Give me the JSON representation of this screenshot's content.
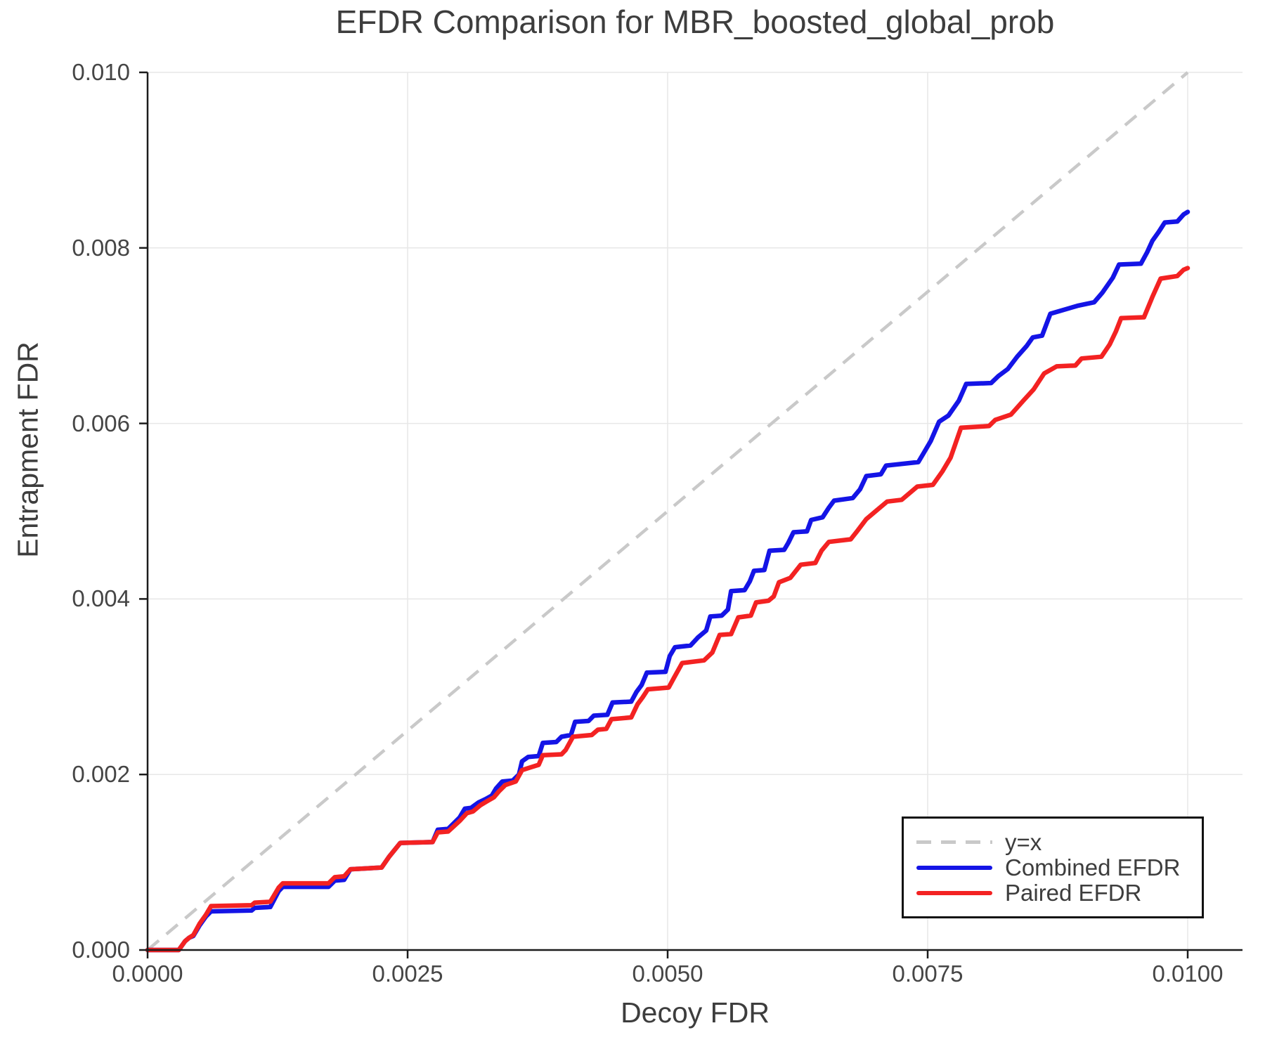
{
  "window": {
    "background": "#ffffff"
  },
  "chart_data": {
    "type": "line",
    "title": "EFDR Comparison for MBR_boosted_global_prob",
    "xlabel": "Decoy FDR",
    "ylabel": "Entrapment FDR",
    "xlim": [
      0,
      0.010527
    ],
    "ylim": [
      0,
      0.01
    ],
    "grid": true,
    "legend_position": "lower right",
    "x_ticks": {
      "values": [
        0,
        0.0025,
        0.005,
        0.0075,
        0.01
      ],
      "labels": [
        "0.0000",
        "0.0025",
        "0.0050",
        "0.0075",
        "0.0100"
      ]
    },
    "y_ticks": {
      "values": [
        0,
        0.002,
        0.004,
        0.006,
        0.008,
        0.01
      ],
      "labels": [
        "0.000",
        "0.002",
        "0.004",
        "0.006",
        "0.008",
        "0.010"
      ]
    },
    "colors": {
      "grid": "#e7e7e7",
      "spine": "#1c1c1c",
      "text": "#3d3d3d"
    },
    "series": [
      {
        "name": "y=x",
        "color": "#c9c9c9",
        "dash": [
          21,
          14
        ],
        "width": 4.5,
        "points": [
          [
            0,
            0
          ],
          [
            0.01,
            0.01
          ]
        ]
      },
      {
        "name": "Combined EFDR",
        "color": "#1414e6",
        "dash": null,
        "width": 6.5,
        "points": [
          [
            0,
            0
          ],
          [
            0.0003,
            0
          ],
          [
            0.00036,
            0.0001
          ],
          [
            0.0004,
            0.00014
          ],
          [
            0.00044,
            0.00016
          ],
          [
            0.0005,
            0.00028
          ],
          [
            0.00056,
            0.00038
          ],
          [
            0.00061,
            0.00044
          ],
          [
            0.001,
            0.00045
          ],
          [
            0.00103,
            0.00048
          ],
          [
            0.00118,
            0.00049
          ],
          [
            0.00126,
            0.00067
          ],
          [
            0.0013,
            0.00072
          ],
          [
            0.00174,
            0.00072
          ],
          [
            0.0018,
            0.00079
          ],
          [
            0.00189,
            0.0008
          ],
          [
            0.00195,
            0.00092
          ],
          [
            0.00225,
            0.00094
          ],
          [
            0.00232,
            0.00106
          ],
          [
            0.00243,
            0.00122
          ],
          [
            0.00274,
            0.00123
          ],
          [
            0.00279,
            0.00137
          ],
          [
            0.00289,
            0.00138
          ],
          [
            0.003,
            0.00151
          ],
          [
            0.00305,
            0.00161
          ],
          [
            0.00311,
            0.00162
          ],
          [
            0.00318,
            0.00168
          ],
          [
            0.00325,
            0.00172
          ],
          [
            0.00331,
            0.00176
          ],
          [
            0.00335,
            0.00184
          ],
          [
            0.00341,
            0.00192
          ],
          [
            0.00351,
            0.00193
          ],
          [
            0.00357,
            0.002
          ],
          [
            0.0036,
            0.00215
          ],
          [
            0.00366,
            0.0022
          ],
          [
            0.00376,
            0.00221
          ],
          [
            0.0038,
            0.00236
          ],
          [
            0.00393,
            0.00237
          ],
          [
            0.00398,
            0.00243
          ],
          [
            0.00407,
            0.00245
          ],
          [
            0.00411,
            0.0026
          ],
          [
            0.00424,
            0.00261
          ],
          [
            0.00429,
            0.00267
          ],
          [
            0.00442,
            0.00268
          ],
          [
            0.00447,
            0.00282
          ],
          [
            0.00465,
            0.00283
          ],
          [
            0.0047,
            0.00294
          ],
          [
            0.00475,
            0.00302
          ],
          [
            0.0048,
            0.00316
          ],
          [
            0.00498,
            0.00317
          ],
          [
            0.00502,
            0.00335
          ],
          [
            0.00507,
            0.00345
          ],
          [
            0.00522,
            0.00347
          ],
          [
            0.00529,
            0.00356
          ],
          [
            0.00537,
            0.00364
          ],
          [
            0.00541,
            0.0038
          ],
          [
            0.00552,
            0.00381
          ],
          [
            0.00558,
            0.00388
          ],
          [
            0.00561,
            0.00409
          ],
          [
            0.00574,
            0.0041
          ],
          [
            0.00579,
            0.0042
          ],
          [
            0.00583,
            0.00432
          ],
          [
            0.00593,
            0.00433
          ],
          [
            0.00598,
            0.00455
          ],
          [
            0.00612,
            0.00456
          ],
          [
            0.00616,
            0.00464
          ],
          [
            0.00621,
            0.00476
          ],
          [
            0.00634,
            0.00477
          ],
          [
            0.00638,
            0.0049
          ],
          [
            0.00649,
            0.00493
          ],
          [
            0.00655,
            0.00504
          ],
          [
            0.0066,
            0.00512
          ],
          [
            0.00678,
            0.00515
          ],
          [
            0.00685,
            0.00525
          ],
          [
            0.00691,
            0.0054
          ],
          [
            0.00705,
            0.00542
          ],
          [
            0.0071,
            0.00552
          ],
          [
            0.00741,
            0.00556
          ],
          [
            0.00746,
            0.00566
          ],
          [
            0.00753,
            0.0058
          ],
          [
            0.00761,
            0.00602
          ],
          [
            0.0077,
            0.00609
          ],
          [
            0.0078,
            0.00626
          ],
          [
            0.00787,
            0.00645
          ],
          [
            0.00811,
            0.00646
          ],
          [
            0.00818,
            0.00654
          ],
          [
            0.00827,
            0.00662
          ],
          [
            0.00836,
            0.00676
          ],
          [
            0.00845,
            0.00688
          ],
          [
            0.00851,
            0.00698
          ],
          [
            0.0086,
            0.007
          ],
          [
            0.00868,
            0.00725
          ],
          [
            0.00894,
            0.00734
          ],
          [
            0.0091,
            0.00738
          ],
          [
            0.00918,
            0.00749
          ],
          [
            0.00928,
            0.00766
          ],
          [
            0.00934,
            0.00781
          ],
          [
            0.00955,
            0.00782
          ],
          [
            0.00961,
            0.00795
          ],
          [
            0.00966,
            0.00808
          ],
          [
            0.00972,
            0.00818
          ],
          [
            0.00978,
            0.00829
          ],
          [
            0.0099,
            0.0083
          ],
          [
            0.00996,
            0.00838
          ],
          [
            0.01,
            0.00841
          ]
        ]
      },
      {
        "name": "Paired EFDR",
        "color": "#f32222",
        "dash": null,
        "width": 6.5,
        "points": [
          [
            0,
            0
          ],
          [
            0.0003,
            0
          ],
          [
            0.00036,
            0.0001
          ],
          [
            0.0004,
            0.00014
          ],
          [
            0.00044,
            0.00017
          ],
          [
            0.0005,
            0.0003
          ],
          [
            0.00056,
            0.0004
          ],
          [
            0.00061,
            0.0005
          ],
          [
            0.001,
            0.00051
          ],
          [
            0.00103,
            0.00054
          ],
          [
            0.00118,
            0.00055
          ],
          [
            0.00126,
            0.00071
          ],
          [
            0.0013,
            0.00076
          ],
          [
            0.00174,
            0.00076
          ],
          [
            0.0018,
            0.00083
          ],
          [
            0.00189,
            0.00084
          ],
          [
            0.00195,
            0.00092
          ],
          [
            0.00225,
            0.00094
          ],
          [
            0.00232,
            0.00106
          ],
          [
            0.00243,
            0.00122
          ],
          [
            0.00274,
            0.00123
          ],
          [
            0.00279,
            0.00134
          ],
          [
            0.00289,
            0.00135
          ],
          [
            0.003,
            0.00147
          ],
          [
            0.00307,
            0.00156
          ],
          [
            0.00313,
            0.00158
          ],
          [
            0.0032,
            0.00165
          ],
          [
            0.00327,
            0.0017
          ],
          [
            0.00333,
            0.00174
          ],
          [
            0.00338,
            0.00181
          ],
          [
            0.00344,
            0.00188
          ],
          [
            0.00354,
            0.00192
          ],
          [
            0.0036,
            0.00205
          ],
          [
            0.00368,
            0.00208
          ],
          [
            0.00376,
            0.00211
          ],
          [
            0.0038,
            0.00222
          ],
          [
            0.00398,
            0.00223
          ],
          [
            0.00402,
            0.00228
          ],
          [
            0.00409,
            0.00243
          ],
          [
            0.00427,
            0.00245
          ],
          [
            0.00433,
            0.00251
          ],
          [
            0.00441,
            0.00252
          ],
          [
            0.00446,
            0.00263
          ],
          [
            0.00465,
            0.00265
          ],
          [
            0.00471,
            0.0028
          ],
          [
            0.00476,
            0.00288
          ],
          [
            0.00481,
            0.00297
          ],
          [
            0.00501,
            0.00299
          ],
          [
            0.00506,
            0.0031
          ],
          [
            0.00514,
            0.00327
          ],
          [
            0.00535,
            0.0033
          ],
          [
            0.00543,
            0.00339
          ],
          [
            0.0055,
            0.00359
          ],
          [
            0.00561,
            0.0036
          ],
          [
            0.00568,
            0.00379
          ],
          [
            0.0058,
            0.00381
          ],
          [
            0.00585,
            0.00396
          ],
          [
            0.00597,
            0.00398
          ],
          [
            0.00602,
            0.00403
          ],
          [
            0.00607,
            0.00419
          ],
          [
            0.00618,
            0.00424
          ],
          [
            0.00628,
            0.00439
          ],
          [
            0.00642,
            0.00441
          ],
          [
            0.00648,
            0.00455
          ],
          [
            0.00655,
            0.00465
          ],
          [
            0.00676,
            0.00468
          ],
          [
            0.00682,
            0.00477
          ],
          [
            0.00691,
            0.00491
          ],
          [
            0.00701,
            0.00501
          ],
          [
            0.00711,
            0.00511
          ],
          [
            0.00725,
            0.00513
          ],
          [
            0.0074,
            0.00528
          ],
          [
            0.00755,
            0.0053
          ],
          [
            0.00764,
            0.00545
          ],
          [
            0.00772,
            0.00561
          ],
          [
            0.00777,
            0.00578
          ],
          [
            0.00782,
            0.00595
          ],
          [
            0.00809,
            0.00597
          ],
          [
            0.00815,
            0.00604
          ],
          [
            0.0083,
            0.0061
          ],
          [
            0.00842,
            0.00626
          ],
          [
            0.00852,
            0.00639
          ],
          [
            0.00862,
            0.00657
          ],
          [
            0.00874,
            0.00665
          ],
          [
            0.00892,
            0.00666
          ],
          [
            0.00898,
            0.00674
          ],
          [
            0.00917,
            0.00676
          ],
          [
            0.00925,
            0.0069
          ],
          [
            0.00931,
            0.00705
          ],
          [
            0.00936,
            0.0072
          ],
          [
            0.00958,
            0.00721
          ],
          [
            0.00966,
            0.00744
          ],
          [
            0.00974,
            0.00765
          ],
          [
            0.0099,
            0.00768
          ],
          [
            0.00996,
            0.00775
          ],
          [
            0.01,
            0.00777
          ]
        ]
      }
    ]
  },
  "legend": {
    "items": [
      "y=x",
      "Combined EFDR",
      "Paired EFDR"
    ]
  }
}
